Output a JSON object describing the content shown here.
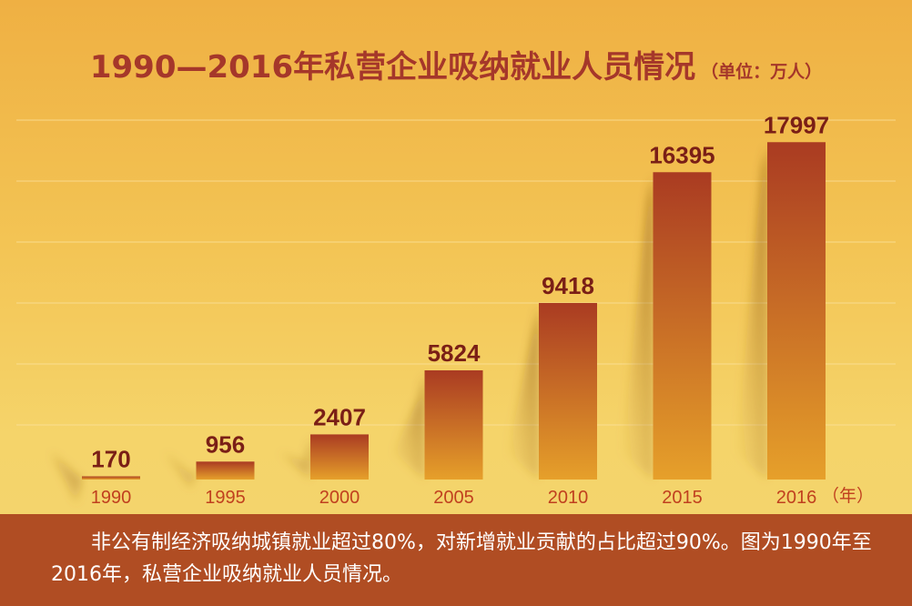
{
  "title": {
    "main": "1990—2016年私营企业吸纳就业人员情况",
    "unit": "（单位：万人）"
  },
  "chart_data": {
    "type": "bar",
    "title": "1990—2016年私营企业吸纳就业人员情况",
    "unit_label": "（单位：万人）",
    "x_unit": "（年）",
    "categories": [
      "1990",
      "1995",
      "2000",
      "2005",
      "2010",
      "2015",
      "2016"
    ],
    "values": [
      170,
      956,
      2407,
      5824,
      9418,
      16395,
      17997
    ],
    "ylim": [
      0,
      20000
    ],
    "grid": true,
    "bar_color_top": "#AA3B22",
    "bar_color_bottom": "#E6A02A",
    "label_color": "#7A1F16",
    "tick_color": "#C0401F"
  },
  "caption": "非公有制经济吸纳城镇就业超过80%，对新增就业贡献的占比超过90%。图为1990年至2016年，私营企业吸纳就业人员情况。"
}
